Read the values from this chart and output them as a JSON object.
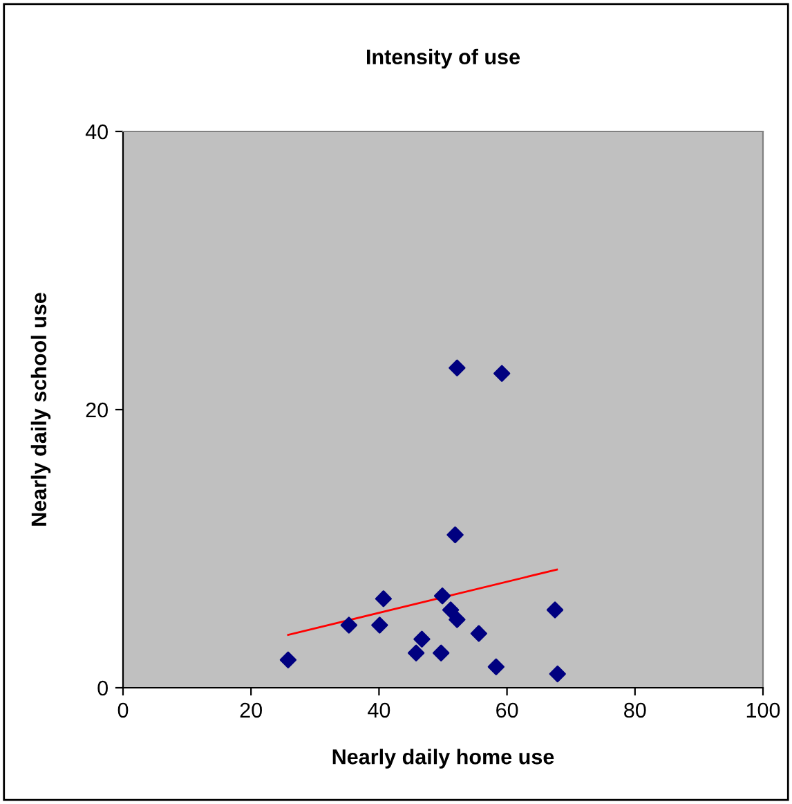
{
  "chart_data": {
    "type": "scatter",
    "title": "Intensity of use",
    "xlabel": "Nearly daily home use",
    "ylabel": "Nearly daily school use",
    "xlim": [
      0,
      100
    ],
    "xticks": [
      0,
      20,
      40,
      60,
      80,
      100
    ],
    "ylim": [
      0,
      40
    ],
    "yticks": [
      0,
      20,
      40
    ],
    "grid": false,
    "legend": false,
    "series": [
      {
        "marker": "diamond",
        "color": "#000080",
        "x": [
          25.8,
          35.3,
          40.7,
          40.1,
          46.7,
          45.8,
          49.7,
          49.9,
          51.2,
          52.2,
          55.6,
          58.3,
          67.5,
          67.9,
          51.9,
          52.2,
          59.2
        ],
        "values": [
          2.0,
          4.5,
          6.4,
          4.5,
          3.5,
          2.5,
          2.5,
          6.6,
          5.6,
          4.9,
          3.9,
          1.5,
          5.6,
          1.0,
          11.0,
          23.0,
          22.6
        ]
      },
      {
        "type": "line",
        "marker": "none",
        "color": "#ff0000",
        "x": [
          25.8,
          67.8
        ],
        "values": [
          3.8,
          8.5
        ]
      }
    ]
  }
}
